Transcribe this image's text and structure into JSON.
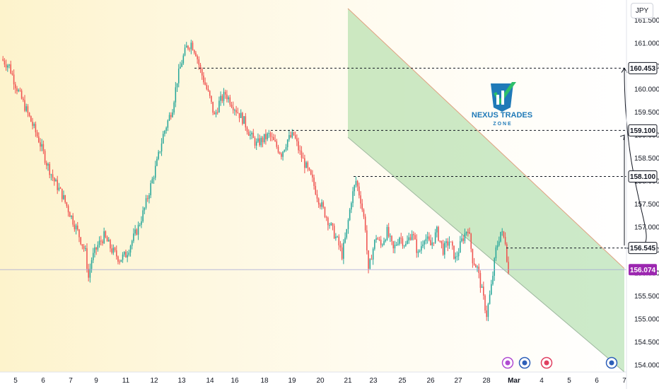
{
  "currency": "JPY",
  "brand": {
    "name": "NEXUS TRADES",
    "sub": "Z O N E",
    "color_primary": "#1f7ab8",
    "color_accent": "#2cbf6a"
  },
  "colors": {
    "up": "#26a69a",
    "down": "#ef5350",
    "current_price_tag": "#9c27b0",
    "channel_fill": "#8fd18a",
    "range_box": "#3fae7a",
    "grid": "#c9ccd3"
  },
  "chart_data": {
    "type": "candlestick",
    "y_ticks": [
      "161.500",
      "161.000",
      "160.500",
      "160.000",
      "159.500",
      "159.000",
      "158.500",
      "158.000",
      "157.500",
      "157.000",
      "156.500",
      "156.000",
      "155.500",
      "155.000",
      "154.500",
      "154.000"
    ],
    "y_tick_values": [
      161.5,
      161.0,
      160.5,
      160.0,
      159.5,
      159.0,
      158.5,
      158.0,
      157.5,
      157.0,
      156.5,
      156.0,
      155.5,
      155.0,
      154.5,
      154.0
    ],
    "ylim": [
      153.85,
      161.75
    ],
    "x_ticks": [
      "5",
      "6",
      "7",
      "9",
      "11",
      "12",
      "13",
      "14",
      "16",
      "18",
      "19",
      "20",
      "21",
      "23",
      "25",
      "26",
      "27",
      "28",
      "Mar",
      "4",
      "5",
      "6",
      "7"
    ],
    "levels": [
      {
        "label": "160.453",
        "value": 160.453
      },
      {
        "label": "159.100",
        "value": 159.1
      },
      {
        "label": "158.100",
        "value": 158.1
      },
      {
        "label": "156.545",
        "value": 156.545
      }
    ],
    "current_price": {
      "label": "156.074",
      "value": 156.074
    },
    "price_anchors": [
      [
        0,
        160.65
      ],
      [
        5,
        160.5
      ],
      [
        9,
        160.1
      ],
      [
        14,
        159.7
      ],
      [
        19,
        159.3
      ],
      [
        24,
        158.9
      ],
      [
        29,
        158.4
      ],
      [
        34,
        158.0
      ],
      [
        39,
        157.7
      ],
      [
        44,
        157.3
      ],
      [
        49,
        156.9
      ],
      [
        54,
        156.45
      ],
      [
        56,
        155.9
      ],
      [
        58,
        156.3
      ],
      [
        62,
        156.6
      ],
      [
        66,
        156.8
      ],
      [
        71,
        156.5
      ],
      [
        76,
        156.3
      ],
      [
        80,
        156.4
      ],
      [
        84,
        156.7
      ],
      [
        88,
        157.0
      ],
      [
        92,
        157.4
      ],
      [
        96,
        157.9
      ],
      [
        100,
        158.4
      ],
      [
        104,
        159.0
      ],
      [
        107,
        159.3
      ],
      [
        110,
        159.6
      ],
      [
        113,
        160.2
      ],
      [
        116,
        160.6
      ],
      [
        119,
        160.9
      ],
      [
        122,
        161.0
      ],
      [
        125,
        160.8
      ],
      [
        128,
        160.4
      ],
      [
        131,
        160.1
      ],
      [
        134,
        159.8
      ],
      [
        137,
        159.4
      ],
      [
        140,
        159.7
      ],
      [
        144,
        159.9
      ],
      [
        148,
        159.7
      ],
      [
        152,
        159.5
      ],
      [
        156,
        159.3
      ],
      [
        160,
        159.0
      ],
      [
        164,
        158.8
      ],
      [
        168,
        158.9
      ],
      [
        172,
        159.0
      ],
      [
        176,
        158.8
      ],
      [
        180,
        158.6
      ],
      [
        184,
        158.9
      ],
      [
        188,
        159.0
      ],
      [
        192,
        158.6
      ],
      [
        196,
        158.3
      ],
      [
        200,
        158.0
      ],
      [
        204,
        157.6
      ],
      [
        208,
        157.3
      ],
      [
        212,
        157.0
      ],
      [
        216,
        156.7
      ],
      [
        219,
        156.4
      ],
      [
        222,
        156.9
      ],
      [
        225,
        157.6
      ],
      [
        228,
        158.0
      ],
      [
        231,
        157.6
      ],
      [
        234,
        157.0
      ],
      [
        236,
        156.0
      ],
      [
        238,
        156.4
      ],
      [
        241,
        156.8
      ],
      [
        244,
        156.6
      ],
      [
        248,
        156.9
      ],
      [
        252,
        156.5
      ],
      [
        256,
        156.8
      ],
      [
        260,
        156.6
      ],
      [
        264,
        156.9
      ],
      [
        268,
        156.4
      ],
      [
        272,
        156.8
      ],
      [
        276,
        156.6
      ],
      [
        280,
        156.9
      ],
      [
        284,
        156.5
      ],
      [
        288,
        156.7
      ],
      [
        292,
        156.3
      ],
      [
        296,
        156.7
      ],
      [
        300,
        157.0
      ],
      [
        303,
        156.3
      ],
      [
        306,
        156.1
      ],
      [
        309,
        155.6
      ],
      [
        312,
        155.1
      ],
      [
        315,
        155.7
      ],
      [
        318,
        156.5
      ],
      [
        321,
        156.9
      ],
      [
        324,
        156.7
      ],
      [
        326,
        156.0
      ]
    ],
    "channel": {
      "top": [
        [
          12,
          161.75
        ],
        [
          26.5,
          156.1
        ]
      ],
      "bottom": [
        [
          12,
          158.95
        ],
        [
          26.5,
          153.85
        ]
      ]
    },
    "range_box": {
      "x0": 22.9,
      "x1": 27.75,
      "y0": 155.95,
      "y1": 157.25
    },
    "forecast": {
      "zigzag": [
        [
          27.95,
          156.6
        ],
        [
          28.2,
          157.7
        ],
        [
          28.35,
          157.3
        ],
        [
          28.5,
          157.8
        ],
        [
          29.3,
          159.0
        ]
      ],
      "curve_end": [
        29.8,
        160.45
      ]
    },
    "events": [
      "lightning-event-icon",
      "flag-event-icon",
      "news-event-icon",
      "flag-event-icon"
    ]
  }
}
